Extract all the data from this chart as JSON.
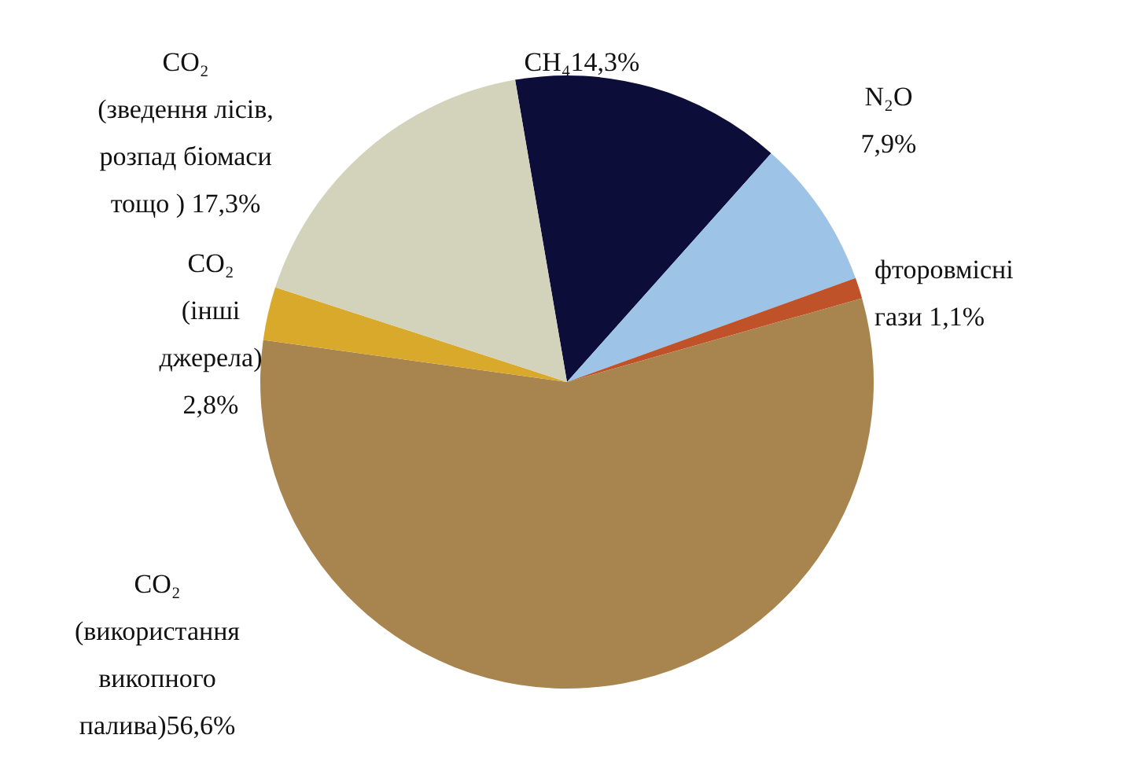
{
  "chart_data": {
    "type": "pie",
    "categories": [
      "CH₄",
      "N₂O",
      "фторовмісні гази",
      "CO₂ (використання викопного палива)",
      "CO₂ (інші джерела)",
      "CO₂ (зведення лісів, розпад біомаси тощо )"
    ],
    "values": [
      14.3,
      7.9,
      1.1,
      56.6,
      2.8,
      17.3
    ],
    "value_labels": [
      "14,3%",
      "7,9%",
      "1,1%",
      "56,6%",
      "2,8%",
      "17,3%"
    ],
    "colors": [
      "#0d0d3a",
      "#9dc3e6",
      "#c0522a",
      "#a8854f",
      "#d9a92b",
      "#d3d3bb"
    ]
  }
}
